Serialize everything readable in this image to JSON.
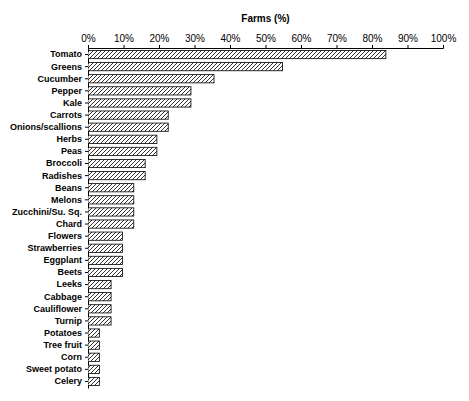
{
  "chart_data": {
    "type": "bar",
    "orientation": "horizontal",
    "title": "Farms (%)",
    "categories": [
      "Tomato",
      "Greens",
      "Cucumber",
      "Pepper",
      "Kale",
      "Carrots",
      "Onions/scallions",
      "Herbs",
      "Peas",
      "Broccoli",
      "Radishes",
      "Beans",
      "Melons",
      "Zucchini/Su. Sq.",
      "Chard",
      "Flowers",
      "Strawberries",
      "Eggplant",
      "Beets",
      "Leeks",
      "Cabbage",
      "Cauliflower",
      "Turnip",
      "Potatoes",
      "Tree fruit",
      "Corn",
      "Sweet potato",
      "Celery"
    ],
    "values": [
      83.9,
      54.8,
      35.5,
      29.0,
      29.0,
      22.6,
      22.6,
      19.4,
      19.4,
      16.1,
      16.1,
      12.9,
      12.9,
      12.9,
      12.9,
      9.7,
      9.7,
      9.7,
      9.7,
      6.5,
      6.5,
      6.5,
      6.5,
      3.2,
      3.2,
      3.2,
      3.2,
      3.2
    ],
    "color": "#000000",
    "xlim": [
      0,
      100
    ],
    "xticks": [
      {
        "value": 0,
        "label": "0%"
      },
      {
        "value": 10,
        "label": "10%"
      },
      {
        "value": 20,
        "label": "20%"
      },
      {
        "value": 30,
        "label": "30%"
      },
      {
        "value": 40,
        "label": "40%"
      },
      {
        "value": 50,
        "label": "50%"
      },
      {
        "value": 60,
        "label": "60%"
      },
      {
        "value": 70,
        "label": "70%"
      },
      {
        "value": 80,
        "label": "80%"
      },
      {
        "value": 90,
        "label": "90%"
      },
      {
        "value": 100,
        "label": "100%"
      }
    ],
    "grid": false
  }
}
